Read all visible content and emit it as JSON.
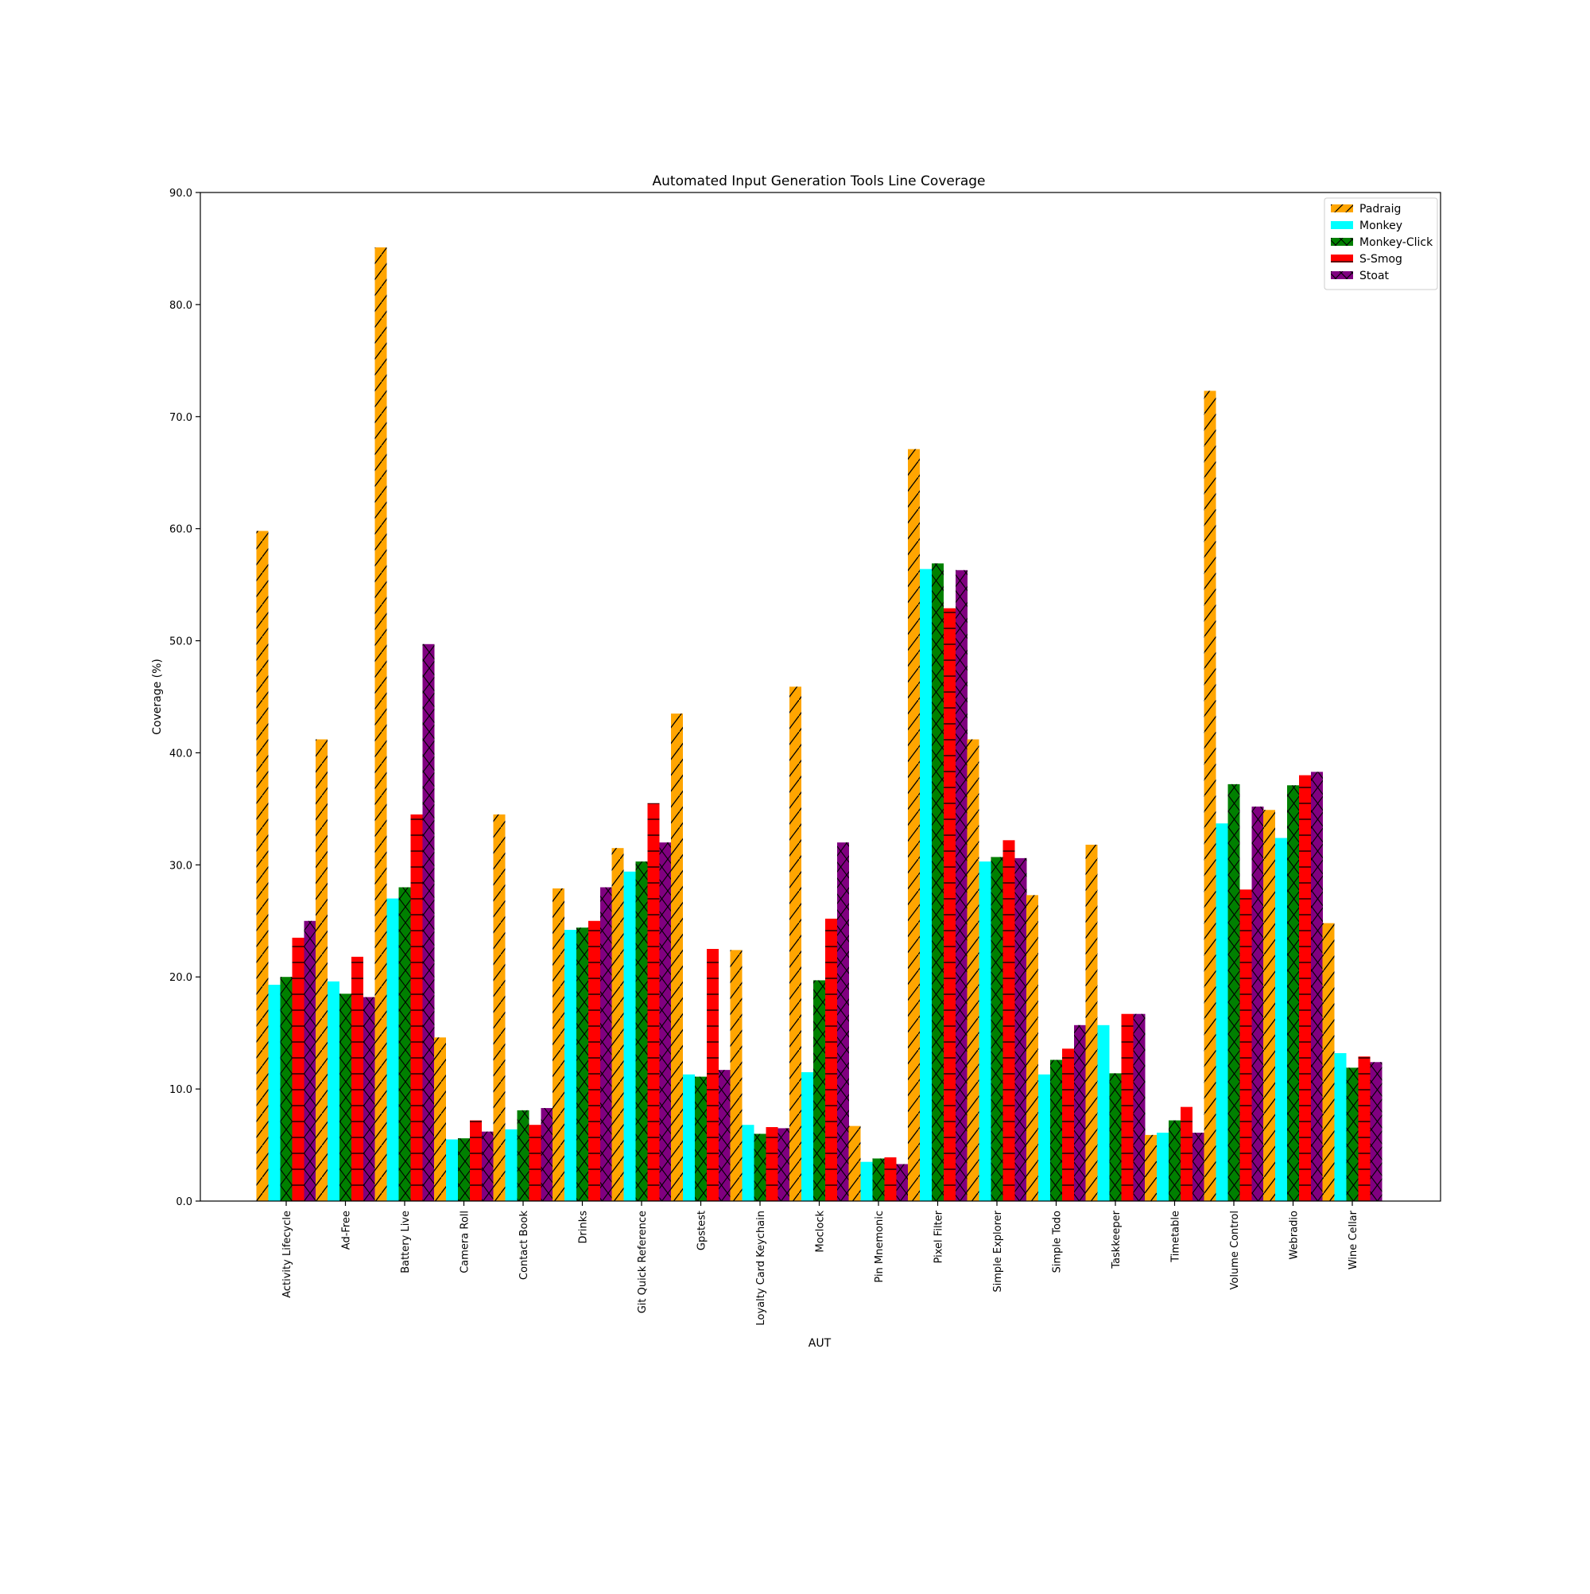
{
  "chart_data": {
    "type": "bar",
    "title": "Automated Input Generation Tools Line Coverage",
    "xlabel": "AUT",
    "ylabel": "Coverage (%)",
    "ylim": [
      0,
      90
    ],
    "yticks": [
      "0.0",
      "10.0",
      "20.0",
      "30.0",
      "40.0",
      "50.0",
      "60.0",
      "70.0",
      "80.0",
      "90.0"
    ],
    "grid": false,
    "legend_position": "top-right",
    "categories": [
      "Activity Lifecycle",
      "Ad-Free",
      "Battery Live",
      "Camera Roll",
      "Contact Book",
      "Drinks",
      "Git Quick Reference",
      "Gpstest",
      "Loyalty Card Keychain",
      "Moclock",
      "Pin Mnemonic",
      "Pixel Filter",
      "Simple Explorer",
      "Simple Todo",
      "Taskkeeper",
      "Timetable",
      "Volume Control",
      "Webradio",
      "Wine Cellar"
    ],
    "series": [
      {
        "name": "Padraig",
        "color": "#ffa500",
        "hatch": "diagonal",
        "values": [
          59.8,
          41.2,
          85.1,
          14.6,
          34.5,
          27.9,
          31.5,
          43.5,
          22.4,
          45.9,
          6.7,
          67.1,
          41.2,
          27.3,
          31.8,
          5.9,
          72.3,
          34.9,
          24.8
        ]
      },
      {
        "name": "Monkey",
        "color": "#00ffff",
        "hatch": "none",
        "values": [
          19.3,
          19.6,
          27.0,
          5.5,
          6.4,
          24.2,
          29.4,
          11.3,
          6.8,
          11.5,
          3.5,
          56.4,
          30.3,
          11.3,
          15.7,
          6.1,
          33.7,
          32.4,
          13.2
        ]
      },
      {
        "name": "Monkey-Click",
        "color": "#008000",
        "hatch": "cross",
        "values": [
          20.0,
          18.5,
          28.0,
          5.6,
          8.1,
          24.4,
          30.3,
          11.1,
          6.0,
          19.7,
          3.8,
          56.9,
          30.7,
          12.6,
          11.4,
          7.2,
          37.2,
          37.1,
          11.9
        ]
      },
      {
        "name": "S-Smog",
        "color": "#ff0000",
        "hatch": "horizontal",
        "values": [
          23.5,
          21.8,
          34.5,
          7.2,
          6.8,
          25.0,
          35.5,
          22.5,
          6.6,
          25.2,
          3.9,
          52.9,
          32.2,
          13.6,
          16.7,
          8.4,
          27.8,
          38.0,
          12.9
        ]
      },
      {
        "name": "Stoat",
        "color": "#800080",
        "hatch": "cross",
        "values": [
          25.0,
          18.2,
          49.7,
          6.2,
          8.3,
          28.0,
          32.0,
          11.7,
          6.5,
          32.0,
          3.3,
          56.3,
          30.6,
          15.7,
          16.7,
          6.1,
          35.2,
          38.3,
          12.4
        ]
      }
    ]
  }
}
